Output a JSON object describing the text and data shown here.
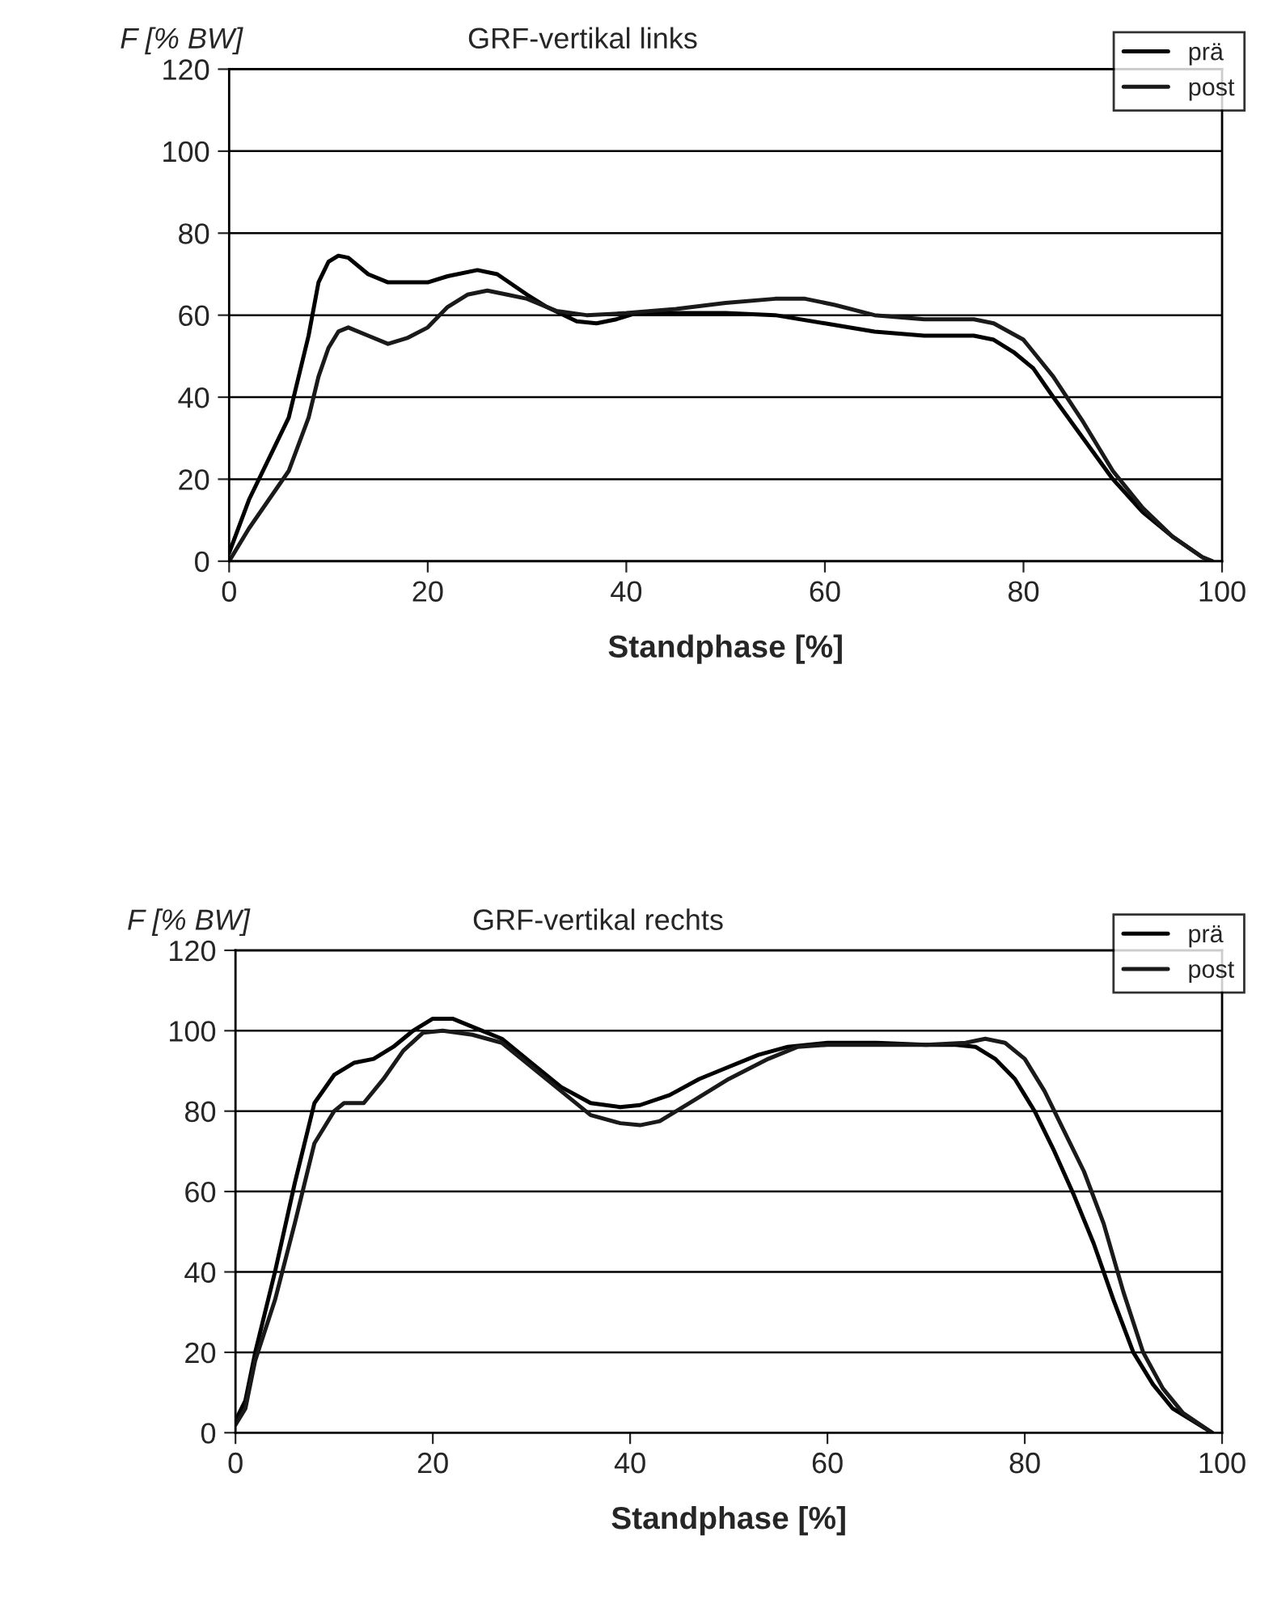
{
  "chart_data": [
    {
      "type": "line",
      "title": "GRF-vertikal links",
      "xlabel": "Standphase [%]",
      "ylabel": "F [% BW]",
      "xlim": [
        0,
        100
      ],
      "ylim": [
        0,
        120
      ],
      "xticks": [
        0,
        20,
        40,
        60,
        80,
        100
      ],
      "yticks": [
        0,
        20,
        40,
        60,
        80,
        100,
        120
      ],
      "grid": "y",
      "legend": "top right",
      "marker": "none",
      "line_style": "solid",
      "series": [
        {
          "name": "prä",
          "color": "#000000",
          "x": [
            0,
            2,
            4,
            6,
            8,
            9,
            10,
            11,
            12,
            14,
            16,
            20,
            22,
            25,
            27,
            30,
            32,
            35,
            37,
            39,
            41,
            45,
            50,
            55,
            60,
            65,
            70,
            75,
            77,
            79,
            81,
            83,
            86,
            89,
            92,
            95,
            98,
            99
          ],
          "values": [
            2,
            15,
            25,
            35,
            55,
            68,
            73,
            74.5,
            74,
            70,
            68,
            68,
            69.5,
            71,
            70,
            65,
            62,
            58.5,
            58,
            59,
            60.5,
            60.5,
            60.5,
            60,
            58,
            56,
            55,
            55,
            54,
            51,
            47,
            40,
            30,
            20,
            12,
            6,
            1,
            0
          ]
        },
        {
          "name": "post",
          "color": "#1a1a1a",
          "x": [
            0,
            2,
            4,
            6,
            8,
            9,
            10,
            11,
            12,
            14,
            16,
            18,
            20,
            22,
            24,
            26,
            28,
            30,
            33,
            36,
            40,
            45,
            50,
            55,
            58,
            61,
            65,
            70,
            75,
            77,
            80,
            83,
            86,
            89,
            92,
            95,
            98,
            99
          ],
          "values": [
            0,
            8,
            15,
            22,
            35,
            45,
            52,
            56,
            57,
            55,
            53,
            54.5,
            57,
            62,
            65,
            66,
            65,
            64,
            61,
            60,
            60.5,
            61.5,
            63,
            64,
            64,
            62.5,
            60,
            59,
            59,
            58,
            54,
            45,
            34,
            22,
            13,
            6,
            1,
            0
          ]
        }
      ]
    },
    {
      "type": "line",
      "title": "GRF-vertikal rechts",
      "xlabel": "Standphase [%]",
      "ylabel": "F [% BW]",
      "xlim": [
        0,
        100
      ],
      "ylim": [
        0,
        120
      ],
      "xticks": [
        0,
        20,
        40,
        60,
        80,
        100
      ],
      "yticks": [
        0,
        20,
        40,
        60,
        80,
        100,
        120
      ],
      "grid": "y",
      "legend": "top right",
      "marker": "none",
      "line_style": "solid",
      "series": [
        {
          "name": "prä",
          "color": "#000000",
          "x": [
            0,
            1,
            2,
            4,
            6,
            8,
            10,
            12,
            14,
            16,
            18,
            20,
            22,
            24,
            27,
            30,
            33,
            36,
            39,
            41,
            44,
            47,
            50,
            53,
            56,
            60,
            65,
            70,
            73,
            75,
            77,
            79,
            81,
            83,
            85,
            87,
            89,
            91,
            93,
            95,
            97,
            99
          ],
          "values": [
            3,
            8,
            20,
            40,
            62,
            82,
            89,
            92,
            93,
            96,
            100,
            103,
            103,
            101,
            98,
            92,
            86,
            82,
            81,
            81.5,
            84,
            88,
            91,
            94,
            96,
            97,
            97,
            96.5,
            96.5,
            96,
            93,
            88,
            80,
            70,
            59,
            47,
            33,
            20,
            12,
            6,
            3,
            0
          ]
        },
        {
          "name": "post",
          "color": "#1a1a1a",
          "x": [
            0,
            1,
            2,
            4,
            6,
            8,
            10,
            11,
            13,
            15,
            17,
            19,
            21,
            24,
            27,
            30,
            33,
            36,
            39,
            41,
            43,
            46,
            50,
            54,
            57,
            60,
            65,
            70,
            74,
            76,
            78,
            80,
            82,
            84,
            86,
            88,
            90,
            92,
            94,
            96,
            99
          ],
          "values": [
            2,
            6,
            18,
            33,
            52,
            72,
            80,
            82,
            82,
            88,
            95,
            99.5,
            100,
            99,
            97,
            91,
            85,
            79,
            77,
            76.5,
            77.5,
            82,
            88,
            93,
            96,
            96.5,
            96.5,
            96.5,
            97,
            98,
            97,
            93,
            85,
            75,
            65,
            52,
            35,
            20,
            11,
            5,
            0
          ]
        }
      ]
    }
  ]
}
